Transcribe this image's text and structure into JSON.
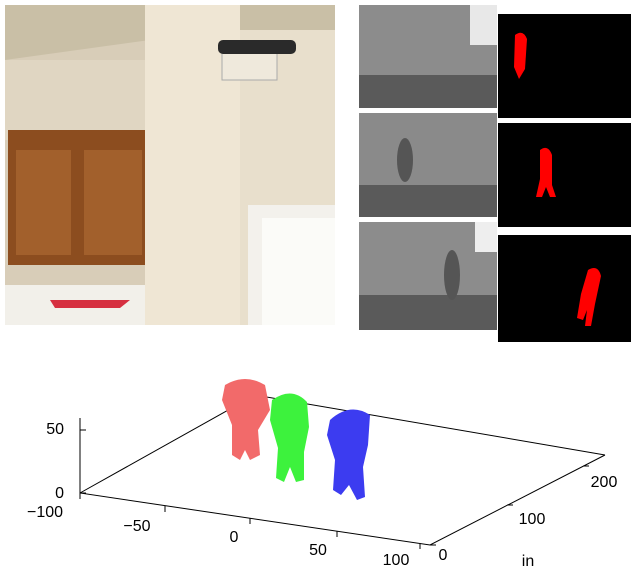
{
  "plot": {
    "z_ticks": [
      50,
      0
    ],
    "x_ticks": [
      {
        "value": -100,
        "label": "−100"
      },
      {
        "value": -50,
        "label": "−50"
      },
      0,
      50,
      100
    ],
    "y_ticks": [
      0,
      100,
      200
    ],
    "y_label": "in"
  }
}
